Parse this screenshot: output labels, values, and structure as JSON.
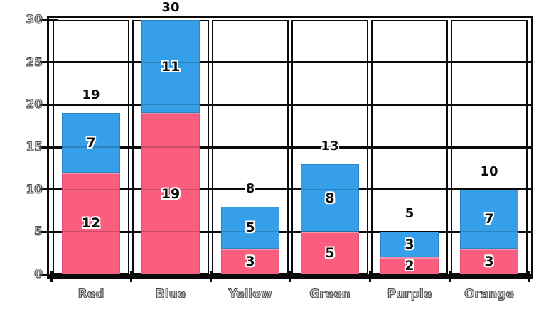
{
  "chart_data": {
    "type": "bar",
    "stacked": true,
    "title": "",
    "xlabel": "",
    "ylabel": "",
    "categories": [
      "Red",
      "Blue",
      "Yellow",
      "Green",
      "Purple",
      "Orange"
    ],
    "series": [
      {
        "name": "pink-bottom-segment",
        "color": "#fb5d7f",
        "values": [
          12,
          19,
          3,
          5,
          2,
          3
        ]
      },
      {
        "name": "blue-top-segment",
        "color": "#35a0e9",
        "values": [
          7,
          11,
          5,
          8,
          3,
          7
        ]
      }
    ],
    "totals": [
      19,
      30,
      8,
      13,
      5,
      10
    ],
    "ylim": [
      0,
      30
    ],
    "yticks": [
      0,
      5,
      10,
      15,
      20,
      25,
      30
    ],
    "grid": true,
    "legend": "none",
    "frame_color": "#0a0a0a",
    "axis_text_outline_color": "#3e3e3e",
    "value_label_color": "#0d0d0d",
    "value_label_halo_color": "#ffffff",
    "background_color": "#ffffff"
  }
}
